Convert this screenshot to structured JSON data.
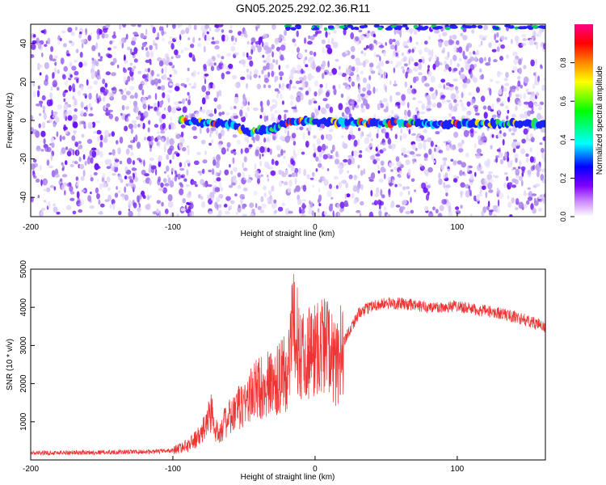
{
  "page": {
    "title": "GN05.2025.292.02.36.R11"
  },
  "colors": {
    "spectrum_primary": "#6a0dff",
    "spectrum_light": "#c9b8f2",
    "signal_band": [
      "#1a22ff",
      "#00d0ff",
      "#2bdc4c",
      "#ffd400",
      "#ff2a2a"
    ],
    "snr_line": "#ee3333",
    "colorbar": [
      "#ffffff",
      "#cc88ff",
      "#7f00ff",
      "#0000ff",
      "#00ffff",
      "#00ff00",
      "#ffff00",
      "#ff8800",
      "#ff0000",
      "#ff0088"
    ]
  },
  "chart_data": [
    {
      "type": "heatmap",
      "title": "GN05.2025.292.02.36.R11",
      "xlabel": "Height of straight line (km)",
      "ylabel": "Frequency (Hz)",
      "xlim": [
        -200,
        162
      ],
      "ylim": [
        -50,
        50
      ],
      "x_ticks": [
        -200,
        -100,
        0,
        100
      ],
      "y_ticks": [
        -40,
        -20,
        0,
        20,
        40
      ],
      "signal_band": {
        "x_start": -95,
        "x_end": 162,
        "frequency_center": [
          [
            -95,
            0
          ],
          [
            -60,
            -2
          ],
          [
            -45,
            -6
          ],
          [
            -25,
            -3
          ],
          [
            -15,
            0
          ],
          [
            0,
            -1
          ],
          [
            160,
            -2
          ]
        ]
      },
      "colorbar": {
        "label": "Normalized spectral amplitude",
        "range": [
          0.0,
          1.0
        ],
        "ticks": [
          0.0,
          0.2,
          0.4,
          0.6,
          0.8
        ]
      },
      "grid": false
    },
    {
      "type": "line",
      "xlabel": "Height of straight line (km)",
      "ylabel": "SNR (10 * v/v)",
      "xlim": [
        -200,
        162
      ],
      "ylim": [
        0,
        5000
      ],
      "x_ticks": [
        -200,
        -100,
        0,
        100
      ],
      "y_ticks": [
        1000,
        2000,
        3000,
        4000,
        5000
      ],
      "series": [
        {
          "x": [
            -200,
            -150,
            -110,
            -100,
            -90,
            -80,
            -73,
            -70,
            -60,
            -50,
            -40,
            -30,
            -20,
            -15,
            -10,
            0,
            5,
            10,
            15,
            20,
            30,
            40,
            50,
            60,
            70,
            80,
            90,
            100,
            110,
            120,
            130,
            140,
            150,
            162
          ],
          "values": [
            180,
            200,
            220,
            250,
            380,
            650,
            1300,
            700,
            1100,
            1500,
            1900,
            2000,
            2300,
            3500,
            2800,
            2900,
            3000,
            3000,
            2400,
            3100,
            3800,
            4050,
            4100,
            4100,
            4050,
            4000,
            4000,
            4050,
            3950,
            3900,
            3850,
            3750,
            3650,
            3480
          ]
        }
      ],
      "grid": false
    }
  ]
}
